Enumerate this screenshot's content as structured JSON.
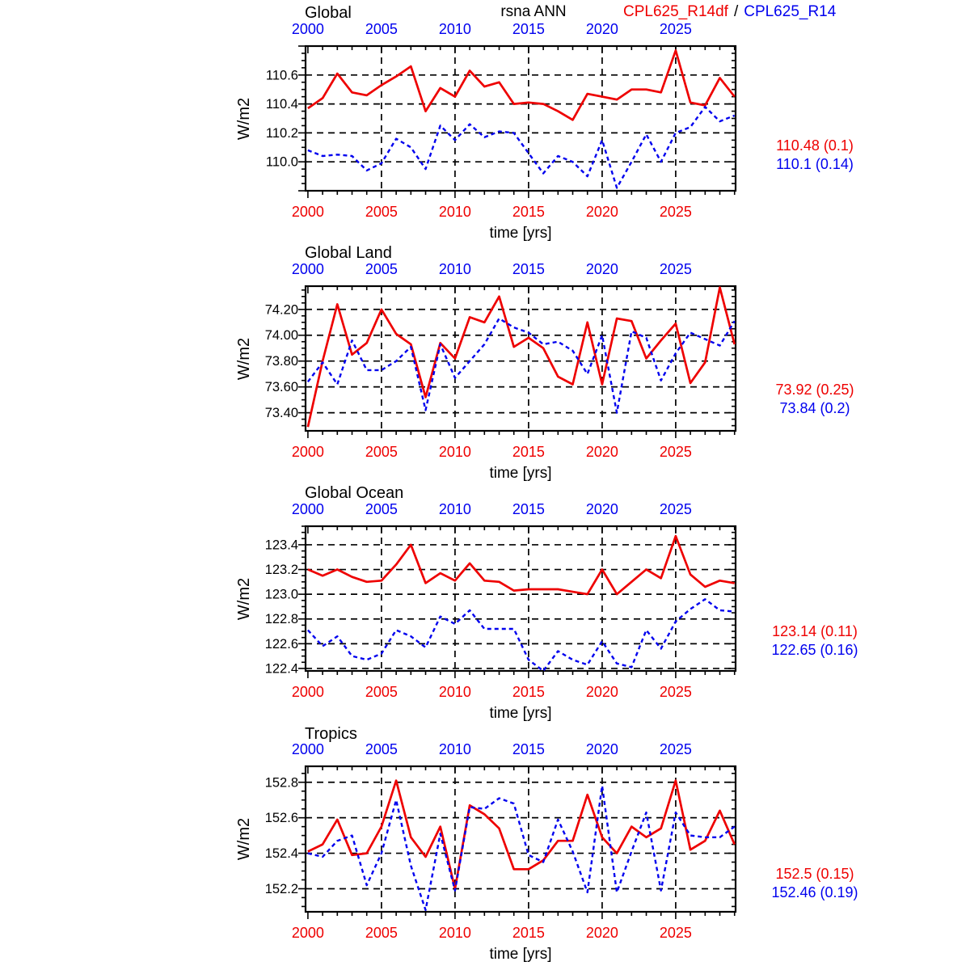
{
  "colors": {
    "red": "#ee0000",
    "blue": "#0000ee",
    "axis": "#000000"
  },
  "header": {
    "annotation": "rsna ANN",
    "series1": "CPL625_R14df",
    "separator": "/",
    "series2": "CPL625_R14"
  },
  "axis": {
    "xlabel": "time [yrs]",
    "ylabel": "W/m2",
    "xticks_major": [
      2000,
      2005,
      2010,
      2015,
      2020,
      2025
    ],
    "x_minor_step": 1,
    "y_minor_step": 0.05,
    "grid": "dashed"
  },
  "years": [
    2000,
    2001,
    2002,
    2003,
    2004,
    2005,
    2006,
    2007,
    2008,
    2009,
    2010,
    2011,
    2012,
    2013,
    2014,
    2015,
    2016,
    2017,
    2018,
    2019,
    2020,
    2021,
    2022,
    2023,
    2024,
    2025,
    2026,
    2027,
    2028,
    2029
  ],
  "chart_data": [
    {
      "type": "line",
      "title": "Global",
      "xlabel": "time [yrs]",
      "ylabel": "W/m2",
      "xlim": [
        1999.84,
        2029.07
      ],
      "ylim": [
        109.8,
        110.8
      ],
      "yticks": [
        110.0,
        110.2,
        110.4,
        110.6
      ],
      "ytick_labels": [
        "110.0",
        "110.2",
        "110.4",
        "110.6"
      ],
      "stats": [
        "110.48 (0.1)",
        "110.1 (0.14)"
      ],
      "series": [
        {
          "name": "CPL625_R14df",
          "color": "#ee0000",
          "style": "solid",
          "values": [
            110.37,
            110.44,
            110.61,
            110.48,
            110.46,
            110.53,
            110.59,
            110.66,
            110.35,
            110.51,
            110.45,
            110.63,
            110.52,
            110.55,
            110.4,
            110.41,
            110.4,
            110.35,
            110.29,
            110.47,
            110.45,
            110.43,
            110.5,
            110.5,
            110.48,
            110.77,
            110.41,
            110.39,
            110.58,
            110.45
          ]
        },
        {
          "name": "CPL625_R14",
          "color": "#0000ee",
          "style": "dashed",
          "values": [
            110.08,
            110.04,
            110.05,
            110.04,
            109.94,
            109.99,
            110.16,
            110.1,
            109.95,
            110.25,
            110.15,
            110.26,
            110.17,
            110.21,
            110.2,
            110.06,
            109.92,
            110.04,
            110.0,
            109.9,
            110.15,
            109.82,
            110.0,
            110.19,
            110.0,
            110.2,
            110.24,
            110.38,
            110.28,
            110.32
          ]
        }
      ]
    },
    {
      "type": "line",
      "title": "Global Land",
      "xlabel": "time [yrs]",
      "ylabel": "W/m2",
      "xlim": [
        1999.84,
        2029.07
      ],
      "ylim": [
        73.26,
        74.38
      ],
      "yticks": [
        73.4,
        73.6,
        73.8,
        74.0,
        74.2
      ],
      "ytick_labels": [
        "73.40",
        "73.60",
        "73.80",
        "74.00",
        "74.20"
      ],
      "stats": [
        "73.92 (0.25)",
        "73.84 (0.2)"
      ],
      "series": [
        {
          "name": "CPL625_R14df",
          "color": "#ee0000",
          "style": "solid",
          "values": [
            73.29,
            73.8,
            74.24,
            73.85,
            73.94,
            74.2,
            74.01,
            73.93,
            73.52,
            73.94,
            73.82,
            74.14,
            74.1,
            74.3,
            73.91,
            73.98,
            73.9,
            73.68,
            73.62,
            74.1,
            73.62,
            74.13,
            74.11,
            73.82,
            73.96,
            74.09,
            73.63,
            73.79,
            74.37,
            73.93
          ]
        },
        {
          "name": "CPL625_R14",
          "color": "#0000ee",
          "style": "dashed",
          "values": [
            73.64,
            73.79,
            73.62,
            73.96,
            73.73,
            73.73,
            73.8,
            73.91,
            73.42,
            73.93,
            73.67,
            73.8,
            73.93,
            74.13,
            74.06,
            74.02,
            73.93,
            73.95,
            73.88,
            73.7,
            74.0,
            73.4,
            74.03,
            73.98,
            73.65,
            73.86,
            74.02,
            73.97,
            73.92,
            74.11
          ]
        }
      ]
    },
    {
      "type": "line",
      "title": "Global Ocean",
      "xlabel": "time [yrs]",
      "ylabel": "W/m2",
      "xlim": [
        1999.84,
        2029.07
      ],
      "ylim": [
        122.38,
        123.55
      ],
      "yticks": [
        122.4,
        122.6,
        122.8,
        123.0,
        123.2,
        123.4
      ],
      "ytick_labels": [
        "122.4",
        "122.6",
        "122.8",
        "123.0",
        "123.2",
        "123.4"
      ],
      "stats": [
        "123.14 (0.11)",
        "122.65 (0.16)"
      ],
      "series": [
        {
          "name": "CPL625_R14df",
          "color": "#ee0000",
          "style": "solid",
          "values": [
            123.2,
            123.15,
            123.2,
            123.14,
            123.1,
            123.11,
            123.24,
            123.4,
            123.09,
            123.17,
            123.11,
            123.25,
            123.11,
            123.1,
            123.03,
            123.04,
            123.04,
            123.04,
            123.02,
            123.0,
            123.2,
            123.0,
            123.1,
            123.2,
            123.13,
            123.47,
            123.16,
            123.06,
            123.11,
            123.09
          ]
        },
        {
          "name": "CPL625_R14",
          "color": "#0000ee",
          "style": "dashed",
          "values": [
            122.71,
            122.58,
            122.66,
            122.5,
            122.47,
            122.52,
            122.71,
            122.66,
            122.57,
            122.82,
            122.76,
            122.87,
            122.72,
            122.72,
            122.72,
            122.47,
            122.38,
            122.54,
            122.47,
            122.43,
            122.62,
            122.44,
            122.41,
            122.71,
            122.56,
            122.78,
            122.88,
            122.96,
            122.87,
            122.86
          ]
        }
      ]
    },
    {
      "type": "line",
      "title": "Tropics",
      "xlabel": "time [yrs]",
      "ylabel": "W/m2",
      "xlim": [
        1999.84,
        2029.07
      ],
      "ylim": [
        152.07,
        152.89
      ],
      "yticks": [
        152.2,
        152.4,
        152.6,
        152.8
      ],
      "ytick_labels": [
        "152.2",
        "152.4",
        "152.6",
        "152.8"
      ],
      "stats": [
        "152.5 (0.15)",
        "152.46 (0.19)"
      ],
      "series": [
        {
          "name": "CPL625_R14df",
          "color": "#ee0000",
          "style": "solid",
          "values": [
            152.41,
            152.45,
            152.59,
            152.39,
            152.4,
            152.55,
            152.81,
            152.49,
            152.38,
            152.55,
            152.2,
            152.67,
            152.62,
            152.54,
            152.31,
            152.31,
            152.36,
            152.47,
            152.47,
            152.73,
            152.49,
            152.4,
            152.55,
            152.49,
            152.54,
            152.81,
            152.42,
            152.47,
            152.64,
            152.45
          ]
        },
        {
          "name": "CPL625_R14",
          "color": "#0000ee",
          "style": "dashed",
          "values": [
            152.4,
            152.38,
            152.47,
            152.5,
            152.22,
            152.4,
            152.7,
            152.33,
            152.08,
            152.51,
            152.19,
            152.66,
            152.65,
            152.71,
            152.68,
            152.39,
            152.35,
            152.59,
            152.41,
            152.18,
            152.78,
            152.18,
            152.41,
            152.63,
            152.19,
            152.63,
            152.5,
            152.49,
            152.49,
            152.55
          ]
        }
      ]
    }
  ]
}
